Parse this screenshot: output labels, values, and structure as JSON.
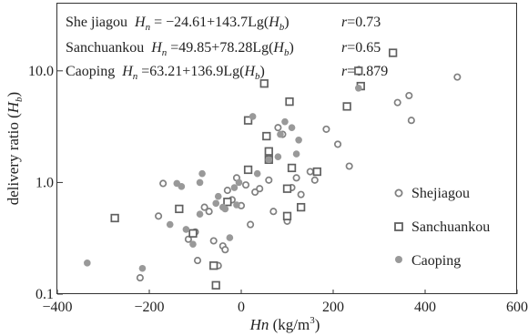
{
  "chart_data": {
    "type": "scatter",
    "title": "",
    "xlabel": {
      "italic": "Hn",
      "rest": " (kg/m",
      "sup": "3",
      "close": ")"
    },
    "ylabel": {
      "plain": "delivery ratio (",
      "italic": "H",
      "sub": "b",
      "close": ")"
    },
    "x_ticks": [
      -400,
      -200,
      0,
      200,
      400,
      600
    ],
    "x_tick_labels": [
      "−400",
      "−200",
      "0",
      "200",
      "400",
      "600"
    ],
    "y_ticks": [
      0.1,
      1.0,
      10.0
    ],
    "y_tick_labels": [
      "0.1",
      "1.0",
      "10.0"
    ],
    "xlim": [
      -400,
      600
    ],
    "ylim": [
      0.1,
      40
    ],
    "y_scale": "log",
    "grid": false,
    "legend_position": "right-center",
    "colors": {
      "Shejiagou": "#808080",
      "Sanchuankou": "#606060",
      "Caoping": "#999999"
    },
    "annotations": [
      {
        "name": "She jiagou",
        "eq_a": " = −24.61+143.7Lg(",
        "eq_b": ")",
        "r": "=0.73"
      },
      {
        "name": "Sanchuankou",
        "eq_a": " =49.85+78.28Lg(",
        "eq_b": ")",
        "r": "=0.65"
      },
      {
        "name": "Caoping",
        "eq_a": " =63.21+136.9Lg(",
        "eq_b": ")",
        "r": "=0.879"
      }
    ],
    "series": [
      {
        "name": "Shejiagou",
        "marker": "open-circle",
        "points": [
          [
            -220,
            0.14
          ],
          [
            -180,
            0.5
          ],
          [
            -170,
            0.98
          ],
          [
            -115,
            0.31
          ],
          [
            -100,
            0.36
          ],
          [
            -95,
            0.2
          ],
          [
            -80,
            0.6
          ],
          [
            -70,
            0.55
          ],
          [
            -60,
            0.3
          ],
          [
            -50,
            0.18
          ],
          [
            -40,
            0.27
          ],
          [
            -35,
            0.25
          ],
          [
            -30,
            0.85
          ],
          [
            -20,
            0.7
          ],
          [
            -10,
            1.1
          ],
          [
            0,
            0.62
          ],
          [
            10,
            0.95
          ],
          [
            20,
            0.42
          ],
          [
            30,
            0.82
          ],
          [
            40,
            0.88
          ],
          [
            60,
            1.05
          ],
          [
            70,
            0.55
          ],
          [
            80,
            3.1
          ],
          [
            90,
            2.7
          ],
          [
            100,
            0.45
          ],
          [
            110,
            0.9
          ],
          [
            120,
            1.1
          ],
          [
            130,
            0.78
          ],
          [
            150,
            1.25
          ],
          [
            160,
            1.05
          ],
          [
            185,
            3.0
          ],
          [
            210,
            2.2
          ],
          [
            235,
            1.4
          ],
          [
            340,
            5.2
          ],
          [
            365,
            6.0
          ],
          [
            370,
            3.6
          ],
          [
            470,
            8.8
          ]
        ]
      },
      {
        "name": "Sanchuankou",
        "marker": "open-square",
        "points": [
          [
            -275,
            0.48
          ],
          [
            -135,
            0.58
          ],
          [
            -105,
            0.35
          ],
          [
            -60,
            0.18
          ],
          [
            -55,
            0.12
          ],
          [
            -30,
            0.67
          ],
          [
            15,
            3.6
          ],
          [
            15,
            1.3
          ],
          [
            50,
            7.7
          ],
          [
            55,
            2.6
          ],
          [
            60,
            1.9
          ],
          [
            60,
            1.6
          ],
          [
            100,
            0.5
          ],
          [
            100,
            0.88
          ],
          [
            105,
            5.3
          ],
          [
            110,
            1.35
          ],
          [
            130,
            0.6
          ],
          [
            165,
            1.25
          ],
          [
            230,
            4.8
          ],
          [
            255,
            10.0
          ],
          [
            260,
            7.3
          ],
          [
            330,
            14.5
          ]
        ]
      },
      {
        "name": "Caoping",
        "marker": "filled-circle",
        "points": [
          [
            -335,
            0.19
          ],
          [
            -215,
            0.17
          ],
          [
            -155,
            0.42
          ],
          [
            -140,
            0.98
          ],
          [
            -130,
            0.92
          ],
          [
            -120,
            0.38
          ],
          [
            -105,
            0.28
          ],
          [
            -90,
            0.52
          ],
          [
            -90,
            1.0
          ],
          [
            -85,
            1.2
          ],
          [
            -55,
            0.65
          ],
          [
            -50,
            0.75
          ],
          [
            -40,
            0.6
          ],
          [
            -35,
            0.58
          ],
          [
            -25,
            0.32
          ],
          [
            -15,
            0.9
          ],
          [
            -10,
            0.63
          ],
          [
            -5,
            1.0
          ],
          [
            25,
            3.9
          ],
          [
            35,
            1.2
          ],
          [
            60,
            1.6
          ],
          [
            80,
            1.7
          ],
          [
            85,
            2.7
          ],
          [
            95,
            3.5
          ],
          [
            110,
            3.1
          ],
          [
            120,
            1.8
          ],
          [
            125,
            2.4
          ],
          [
            255,
            7.0
          ]
        ]
      }
    ]
  }
}
